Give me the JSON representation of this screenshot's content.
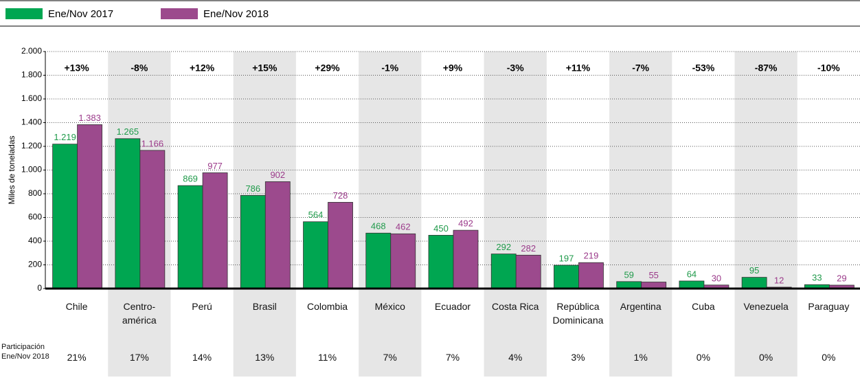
{
  "chart_data": {
    "type": "bar",
    "y_label": "Miles de toneladas",
    "categories": [
      "Chile",
      "Centro-\namérica",
      "Perú",
      "Brasil",
      "Colombia",
      "México",
      "Ecuador",
      "Costa Rica",
      "República\nDominicana",
      "Argentina",
      "Cuba",
      "Venezuela",
      "Paraguay"
    ],
    "series": [
      {
        "name": "Ene/Nov 2017",
        "color": "#00a651",
        "label_color": "#1f9a4a",
        "values": [
          1219,
          1265,
          869,
          786,
          564,
          468,
          450,
          292,
          197,
          59,
          64,
          95,
          33
        ],
        "value_labels": [
          "1.219",
          "1.265",
          "869",
          "786",
          "564",
          "468",
          "450",
          "292",
          "197",
          "59",
          "64",
          "95",
          "33"
        ]
      },
      {
        "name": "Ene/Nov 2018",
        "color": "#9c4a8d",
        "label_color": "#9b3a8a",
        "values": [
          1383,
          1166,
          977,
          902,
          728,
          462,
          492,
          282,
          219,
          55,
          30,
          12,
          29
        ],
        "value_labels": [
          "1.383",
          "1.166",
          "977",
          "902",
          "728",
          "462",
          "492",
          "282",
          "219",
          "55",
          "30",
          "12",
          "29"
        ]
      }
    ],
    "changes": [
      "+13%",
      "-8%",
      "+12%",
      "+15%",
      "+29%",
      "-1%",
      "+9%",
      "-3%",
      "+11%",
      "-7%",
      "-53%",
      "-87%",
      "-10%"
    ],
    "participation_label": "Participación\nEne/Nov 2018",
    "participation": [
      "21%",
      "17%",
      "14%",
      "13%",
      "11%",
      "7%",
      "7%",
      "4%",
      "3%",
      "1%",
      "0%",
      "0%",
      "0%"
    ],
    "ylim": [
      0,
      2000
    ],
    "yticks": [
      {
        "value": 0,
        "label": "0"
      },
      {
        "value": 200,
        "label": "200"
      },
      {
        "value": 400,
        "label": "400"
      },
      {
        "value": 600,
        "label": "600"
      },
      {
        "value": 800,
        "label": "800"
      },
      {
        "value": 1000,
        "label": "1.000"
      },
      {
        "value": 1200,
        "label": "1.200"
      },
      {
        "value": 1400,
        "label": "1.400"
      },
      {
        "value": 1600,
        "label": "1.600"
      },
      {
        "value": 1800,
        "label": "1.800"
      },
      {
        "value": 2000,
        "label": "2.000"
      }
    ],
    "grid": true
  }
}
